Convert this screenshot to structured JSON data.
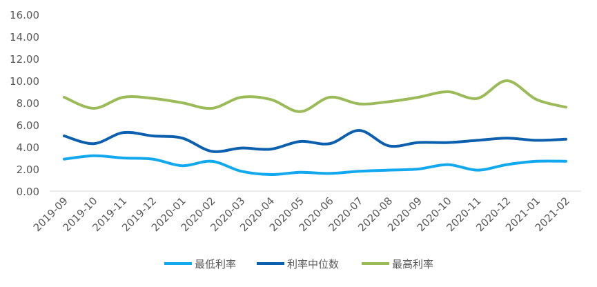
{
  "chart_data": {
    "type": "line",
    "smooth": true,
    "title": "",
    "xlabel": "",
    "ylabel": "",
    "ylim": [
      0,
      16
    ],
    "yticks": [
      "0.00",
      "2.00",
      "4.00",
      "6.00",
      "8.00",
      "10.00",
      "12.00",
      "14.00",
      "16.00"
    ],
    "grid": false,
    "legend_position": "bottom",
    "categories": [
      "2019-09",
      "2019-10",
      "2019-11",
      "2019-12",
      "2020-01",
      "2020-02",
      "2020-03",
      "2020-04",
      "2020-05",
      "2020-06",
      "2020-07",
      "2020-08",
      "2020-09",
      "2020-10",
      "2020-11",
      "2020-12",
      "2021-01",
      "2021-02"
    ],
    "series": [
      {
        "name": "最低利率",
        "color": "#12a8ee",
        "values": [
          2.9,
          3.2,
          3.0,
          2.9,
          2.3,
          2.7,
          1.8,
          1.5,
          1.7,
          1.6,
          1.8,
          1.9,
          2.0,
          2.4,
          1.9,
          2.4,
          2.7,
          2.7
        ]
      },
      {
        "name": "利率中位数",
        "color": "#0b5fad",
        "values": [
          5.0,
          4.3,
          5.3,
          5.0,
          4.8,
          3.6,
          3.9,
          3.8,
          4.5,
          4.3,
          5.5,
          4.1,
          4.4,
          4.4,
          4.6,
          4.8,
          4.6,
          4.7
        ]
      },
      {
        "name": "最高利率",
        "color": "#9bbb59",
        "values": [
          8.5,
          7.5,
          8.5,
          8.4,
          8.0,
          7.5,
          8.5,
          8.3,
          7.2,
          8.5,
          7.9,
          8.1,
          8.5,
          9.0,
          8.4,
          10.0,
          8.3,
          7.6
        ]
      }
    ]
  }
}
